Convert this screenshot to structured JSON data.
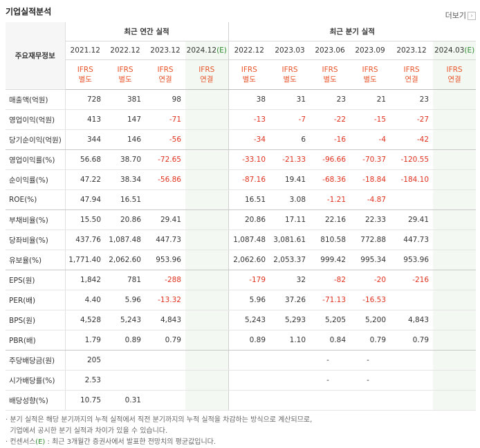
{
  "page": {
    "title": "기업실적분석",
    "more_label": "더보기"
  },
  "header": {
    "row_label": "주요재무정보",
    "annual_group": "최근 연간 실적",
    "quarter_group": "최근 분기 실적",
    "periods": [
      "2021.12",
      "2022.12",
      "2023.12",
      "2024.12",
      "2022.12",
      "2023.03",
      "2023.06",
      "2023.09",
      "2023.12",
      "2024.03"
    ],
    "estimate_mark": "(E)",
    "standards": [
      {
        "l1": "IFRS",
        "l2": "별도"
      },
      {
        "l1": "IFRS",
        "l2": "별도"
      },
      {
        "l1": "IFRS",
        "l2": "연결"
      },
      {
        "l1": "IFRS",
        "l2": "연결"
      },
      {
        "l1": "IFRS",
        "l2": "별도"
      },
      {
        "l1": "IFRS",
        "l2": "별도"
      },
      {
        "l1": "IFRS",
        "l2": "별도"
      },
      {
        "l1": "IFRS",
        "l2": "별도"
      },
      {
        "l1": "IFRS",
        "l2": "연결"
      },
      {
        "l1": "IFRS",
        "l2": "연결"
      }
    ]
  },
  "rows": [
    {
      "label": "매출액(억원)",
      "values": [
        "728",
        "381",
        "98",
        "",
        "38",
        "31",
        "23",
        "21",
        "23",
        ""
      ]
    },
    {
      "label": "영업이익(억원)",
      "values": [
        "413",
        "147",
        "-71",
        "",
        "-13",
        "-7",
        "-22",
        "-15",
        "-27",
        ""
      ]
    },
    {
      "label": "당기순이익(억원)",
      "values": [
        "344",
        "146",
        "-56",
        "",
        "-34",
        "6",
        "-16",
        "-4",
        "-42",
        ""
      ]
    },
    {
      "label": "영업이익률(%)",
      "values": [
        "56.68",
        "38.70",
        "-72.65",
        "",
        "-33.10",
        "-21.33",
        "-96.66",
        "-70.37",
        "-120.55",
        ""
      ]
    },
    {
      "label": "순이익률(%)",
      "values": [
        "47.22",
        "38.34",
        "-56.86",
        "",
        "-87.16",
        "19.41",
        "-68.36",
        "-18.84",
        "-184.10",
        ""
      ]
    },
    {
      "label": "ROE(%)",
      "values": [
        "47.94",
        "16.51",
        "",
        "",
        "16.51",
        "3.08",
        "-1.21",
        "-4.87",
        "",
        ""
      ]
    },
    {
      "label": "부채비율(%)",
      "values": [
        "15.50",
        "20.86",
        "29.41",
        "",
        "20.86",
        "17.11",
        "22.16",
        "22.33",
        "29.41",
        ""
      ]
    },
    {
      "label": "당좌비율(%)",
      "values": [
        "437.76",
        "1,087.48",
        "447.73",
        "",
        "1,087.48",
        "3,081.61",
        "810.58",
        "772.88",
        "447.73",
        ""
      ]
    },
    {
      "label": "유보율(%)",
      "values": [
        "1,771.40",
        "2,062.60",
        "953.96",
        "",
        "2,062.60",
        "2,053.37",
        "999.42",
        "995.34",
        "953.96",
        ""
      ]
    },
    {
      "label": "EPS(원)",
      "values": [
        "1,842",
        "781",
        "-288",
        "",
        "-179",
        "32",
        "-82",
        "-20",
        "-216",
        ""
      ]
    },
    {
      "label": "PER(배)",
      "values": [
        "4.40",
        "5.96",
        "-13.32",
        "",
        "5.96",
        "37.26",
        "-71.13",
        "-16.53",
        "",
        ""
      ]
    },
    {
      "label": "BPS(원)",
      "values": [
        "4,528",
        "5,243",
        "4,843",
        "",
        "5,243",
        "5,293",
        "5,205",
        "5,200",
        "4,843",
        ""
      ]
    },
    {
      "label": "PBR(배)",
      "values": [
        "1.79",
        "0.89",
        "0.79",
        "",
        "0.89",
        "1.10",
        "0.84",
        "0.79",
        "0.79",
        ""
      ]
    },
    {
      "label": "주당배당금(원)",
      "values": [
        "205",
        "",
        "",
        "",
        "",
        "",
        "-",
        "-",
        "",
        ""
      ]
    },
    {
      "label": "시가배당률(%)",
      "values": [
        "2.53",
        "",
        "",
        "",
        "",
        "",
        "-",
        "-",
        "",
        ""
      ]
    },
    {
      "label": "배당성향(%)",
      "values": [
        "10.75",
        "0.31",
        "",
        "",
        "",
        "",
        "",
        "",
        "",
        ""
      ]
    }
  ],
  "group_end_rows": [
    2,
    5,
    8,
    12
  ],
  "notes": {
    "line1": "· 분기 실적은 해당 분기까지의 누적 실적에서 직전 분기까지의 누적 실적을 차감하는 방식으로 계산되므로,",
    "line2": "  기업에서 공시한 분기 실적과 차이가 있을 수 있습니다.",
    "line3_pre": "· 컨센서스",
    "line3_mark": "(E)",
    "line3_post": " : 최근 3개월간 증권사에서 발표한 전망치의 평균값입니다."
  },
  "colors": {
    "negative": "#e0301e",
    "standard": "#e8542a",
    "estimate_bg": "#f3f9f2",
    "estimate_mark": "#2d8a2d"
  }
}
